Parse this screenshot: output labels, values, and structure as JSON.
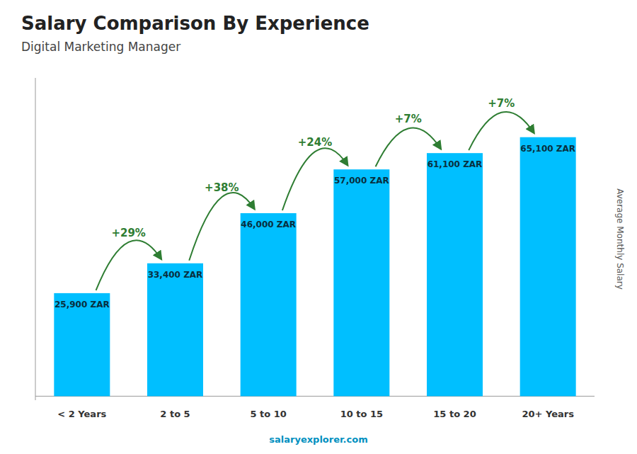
{
  "chart_data": {
    "type": "bar",
    "title": "Salary Comparison By Experience",
    "subtitle": "Digital Marketing Manager",
    "categories": [
      "< 2 Years",
      "2 to 5",
      "5 to 10",
      "10 to 15",
      "15 to 20",
      "20+ Years"
    ],
    "values": [
      25900,
      33400,
      46000,
      57000,
      61100,
      65100
    ],
    "value_labels": [
      "25,900 ZAR",
      "33,400 ZAR",
      "46,000 ZAR",
      "57,000 ZAR",
      "61,100 ZAR",
      "65,100 ZAR"
    ],
    "data_labels": true,
    "annotations": [
      "+29%",
      "+38%",
      "+24%",
      "+7%",
      "+7%"
    ],
    "y_label": "Average Monthly Salary",
    "source": "salaryexplorer.com",
    "color": "#00BFFF",
    "ylim": [
      -1000,
      80000
    ],
    "yticks": [],
    "tick_labels": "x",
    "grid": false
  }
}
